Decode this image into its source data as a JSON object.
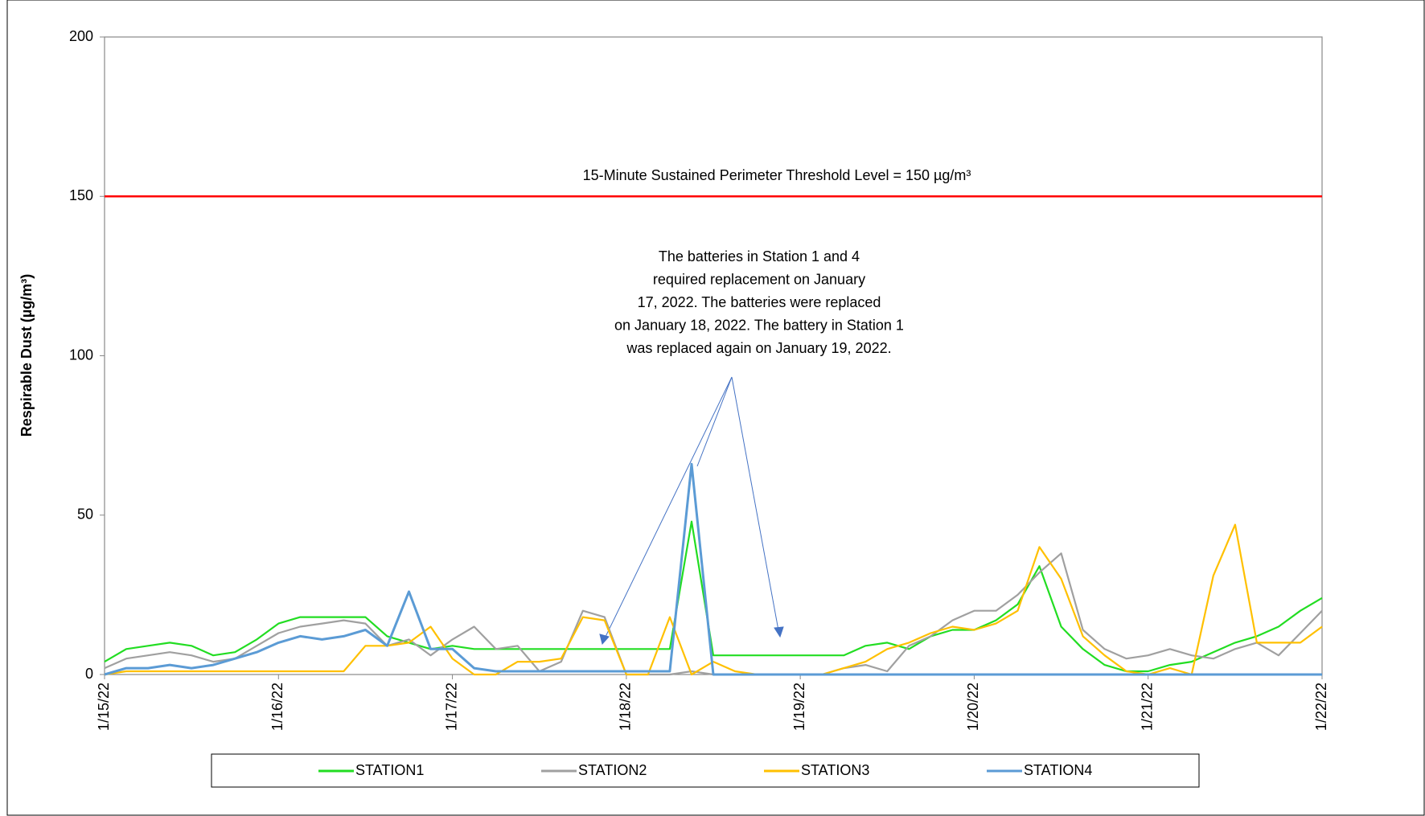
{
  "chart_data": {
    "type": "line",
    "ylabel": "Respirable Dust (µg/m³)",
    "ylim": [
      0,
      200
    ],
    "yticks": [
      0,
      50,
      100,
      150,
      200
    ],
    "xlim": [
      44576,
      44583
    ],
    "xticks": [
      {
        "value": 44576,
        "label": "1/15/22"
      },
      {
        "value": 44577,
        "label": "1/16/22"
      },
      {
        "value": 44578,
        "label": "1/17/22"
      },
      {
        "value": 44579,
        "label": "1/18/22"
      },
      {
        "value": 44580,
        "label": "1/19/22"
      },
      {
        "value": 44581,
        "label": "1/20/22"
      },
      {
        "value": 44582,
        "label": "1/21/22"
      },
      {
        "value": 44583,
        "label": "1/22/22"
      }
    ],
    "threshold": {
      "value": 150,
      "color": "#ff0000",
      "label": "15-Minute Sustained Perimeter Threshold Level = 150 µg/m³"
    },
    "annotation": [
      "The batteries in Station 1 and 4",
      "required replacement on January",
      "17, 2022.  The batteries were replaced",
      "on January 18, 2022.   The battery in Station 1",
      "was replaced again on January 19, 2022."
    ],
    "x": [
      44576,
      44576.125,
      44576.25,
      44576.375,
      44576.5,
      44576.625,
      44576.75,
      44576.875,
      44577,
      44577.125,
      44577.25,
      44577.375,
      44577.5,
      44577.625,
      44577.75,
      44577.875,
      44578,
      44578.125,
      44578.25,
      44578.375,
      44578.5,
      44578.625,
      44578.75,
      44578.875,
      44579,
      44579.125,
      44579.25,
      44579.375,
      44579.5,
      44579.625,
      44579.75,
      44579.875,
      44580,
      44580.125,
      44580.25,
      44580.375,
      44580.5,
      44580.625,
      44580.75,
      44580.875,
      44581,
      44581.125,
      44581.25,
      44581.375,
      44581.5,
      44581.625,
      44581.75,
      44581.875,
      44582,
      44582.125,
      44582.25,
      44582.375,
      44582.5,
      44582.625,
      44582.75,
      44582.875,
      44583
    ],
    "series": [
      {
        "name": "STATION1",
        "color": "#22dd22",
        "values": [
          4,
          8,
          9,
          10,
          9,
          6,
          7,
          11,
          16,
          18,
          18,
          18,
          18,
          12,
          10,
          8,
          9,
          8,
          8,
          8,
          8,
          8,
          8,
          8,
          8,
          8,
          8,
          48,
          6,
          6,
          6,
          6,
          6,
          6,
          6,
          9,
          10,
          8,
          12,
          14,
          14,
          17,
          22,
          34,
          15,
          8,
          3,
          1,
          1,
          3,
          4,
          7,
          10,
          12,
          15,
          20,
          24
        ]
      },
      {
        "name": "STATION2",
        "color": "#a0a0a0",
        "values": [
          2,
          5,
          6,
          7,
          6,
          4,
          5,
          9,
          13,
          15,
          16,
          17,
          16,
          9,
          11,
          6,
          11,
          15,
          8,
          9,
          1,
          4,
          20,
          18,
          0,
          0,
          0,
          1,
          0,
          0,
          0,
          0,
          0,
          0,
          2,
          3,
          1,
          9,
          12,
          17,
          20,
          20,
          25,
          32,
          38,
          14,
          8,
          5,
          6,
          8,
          6,
          5,
          8,
          10,
          6,
          13,
          20
        ]
      },
      {
        "name": "STATION3",
        "color": "#ffc000",
        "values": [
          0,
          1,
          1,
          1,
          1,
          1,
          1,
          1,
          1,
          1,
          1,
          1,
          9,
          9,
          10,
          15,
          5,
          0,
          0,
          4,
          4,
          5,
          18,
          17,
          0,
          0,
          18,
          0,
          4,
          1,
          0,
          0,
          0,
          0,
          2,
          4,
          8,
          10,
          13,
          15,
          14,
          16,
          20,
          40,
          30,
          12,
          6,
          1,
          0,
          2,
          0,
          31,
          47,
          10,
          10,
          10,
          15
        ]
      },
      {
        "name": "STATION4",
        "color": "#5b9bd5",
        "values": [
          0,
          2,
          2,
          3,
          2,
          3,
          5,
          7,
          10,
          12,
          11,
          12,
          14,
          9,
          26,
          8,
          8,
          2,
          1,
          1,
          1,
          1,
          1,
          1,
          1,
          1,
          1,
          66,
          0,
          0,
          0,
          0,
          0,
          0,
          0,
          0,
          0,
          0,
          0,
          0,
          0,
          0,
          0,
          0,
          0,
          0,
          0,
          0,
          0,
          0,
          0,
          0,
          0,
          0,
          0,
          0,
          0
        ]
      }
    ]
  }
}
